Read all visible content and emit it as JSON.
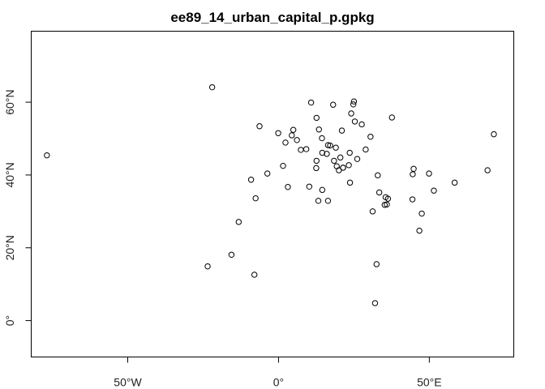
{
  "chart_data": {
    "type": "scatter",
    "title": "ee89_14_urban_capital_p.gpkg",
    "xlabel": "",
    "ylabel": "",
    "xlim": [
      -82.0,
      78.0
    ],
    "ylim": [
      -10.0,
      79.5
    ],
    "x_ticks": [
      {
        "value": -50,
        "label": "50°W"
      },
      {
        "value": 0,
        "label": "0°"
      },
      {
        "value": 50,
        "label": "50°E"
      }
    ],
    "y_ticks": [
      {
        "value": 0,
        "label": "0°"
      },
      {
        "value": 20,
        "label": "20°N"
      },
      {
        "value": 40,
        "label": "40°N"
      },
      {
        "value": 60,
        "label": "60°N"
      }
    ],
    "grid": false,
    "marker": "open-circle",
    "points": [
      [
        -76.8,
        45.4
      ],
      [
        -22.0,
        64.1
      ],
      [
        -23.5,
        14.9
      ],
      [
        -15.6,
        18.1
      ],
      [
        -13.2,
        27.1
      ],
      [
        -8.0,
        12.6
      ],
      [
        -9.1,
        38.7
      ],
      [
        -7.6,
        33.6
      ],
      [
        -6.3,
        53.4
      ],
      [
        -3.7,
        40.4
      ],
      [
        -0.1,
        51.5
      ],
      [
        1.5,
        42.5
      ],
      [
        2.3,
        48.9
      ],
      [
        3.1,
        36.7
      ],
      [
        4.4,
        50.9
      ],
      [
        4.9,
        52.4
      ],
      [
        6.1,
        49.6
      ],
      [
        7.4,
        46.9
      ],
      [
        9.2,
        47.1
      ],
      [
        10.2,
        36.8
      ],
      [
        10.8,
        59.9
      ],
      [
        12.5,
        41.9
      ],
      [
        12.6,
        43.9
      ],
      [
        12.6,
        55.7
      ],
      [
        13.4,
        52.5
      ],
      [
        14.5,
        35.9
      ],
      [
        14.4,
        50.1
      ],
      [
        14.5,
        46.1
      ],
      [
        16.4,
        48.2
      ],
      [
        16.0,
        45.8
      ],
      [
        17.1,
        48.1
      ],
      [
        18.1,
        59.3
      ],
      [
        18.4,
        43.9
      ],
      [
        19.0,
        47.5
      ],
      [
        19.3,
        42.4
      ],
      [
        20.5,
        44.8
      ],
      [
        21.0,
        52.2
      ],
      [
        20.0,
        41.3
      ],
      [
        21.4,
        42.0
      ],
      [
        23.3,
        42.7
      ],
      [
        23.7,
        37.9
      ],
      [
        24.1,
        56.9
      ],
      [
        24.8,
        59.4
      ],
      [
        25.0,
        60.2
      ],
      [
        25.3,
        54.7
      ],
      [
        26.1,
        44.4
      ],
      [
        27.6,
        53.9
      ],
      [
        28.9,
        47.0
      ],
      [
        30.5,
        50.5
      ],
      [
        31.2,
        30.0
      ],
      [
        32.5,
        15.5
      ],
      [
        32.9,
        39.9
      ],
      [
        33.4,
        35.2
      ],
      [
        35.2,
        31.8
      ],
      [
        35.5,
        33.9
      ],
      [
        35.9,
        31.9
      ],
      [
        36.3,
        33.5
      ],
      [
        37.6,
        55.8
      ],
      [
        44.4,
        33.3
      ],
      [
        44.5,
        40.2
      ],
      [
        44.8,
        41.7
      ],
      [
        46.7,
        24.7
      ],
      [
        47.5,
        29.4
      ],
      [
        49.9,
        40.4
      ],
      [
        51.5,
        35.7
      ],
      [
        58.4,
        37.9
      ],
      [
        69.3,
        41.3
      ],
      [
        71.4,
        51.2
      ],
      [
        32.0,
        4.8
      ],
      [
        16.4,
        32.9
      ],
      [
        21.4,
        42.0
      ],
      [
        13.2,
        32.9
      ],
      [
        23.6,
        46.1
      ]
    ]
  }
}
